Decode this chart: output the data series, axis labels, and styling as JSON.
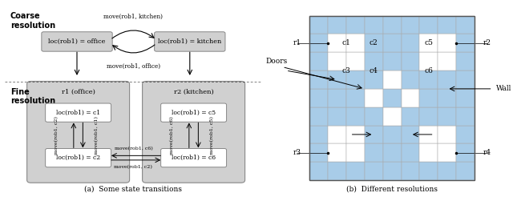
{
  "fig_width": 6.4,
  "fig_height": 2.56,
  "dpi": 100,
  "bg_color": "#ffffff",
  "left_panel": {
    "title": "(a)  Some state transitions",
    "coarse_label": "Coarse\nresolution",
    "fine_label": "Fine\nresolution",
    "node_bg": "#d0d0d0",
    "node_border": "#888888",
    "box_bg": "#d0d0d0",
    "box_border": "#888888",
    "white_box_bg": "#ffffff",
    "wall_color": "#aaccee"
  },
  "right_panel": {
    "title": "(b)  Different resolutions",
    "wall_color": "#a8cce8",
    "floor_color": "#ffffff",
    "grid_line_color": "#aaaaaa",
    "outer_border_color": "#666666"
  }
}
